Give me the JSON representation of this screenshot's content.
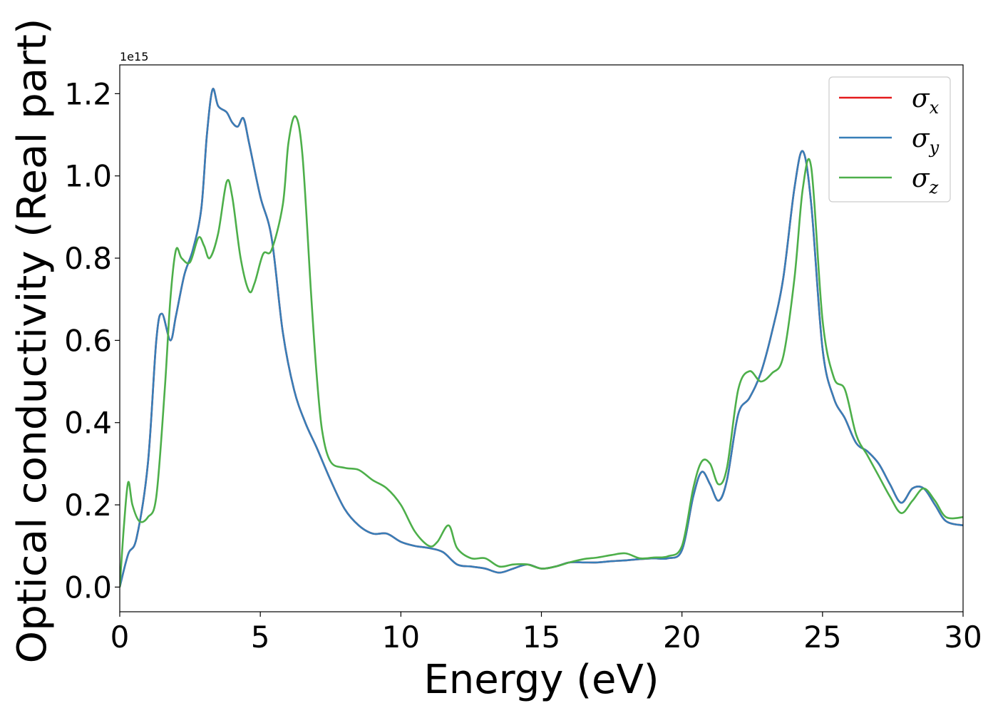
{
  "chart_data": {
    "type": "line",
    "xlabel": "Energy (eV)",
    "ylabel": "Optical conductivity (Real part)",
    "y_offset_label": "1e15",
    "xlim": [
      0,
      30
    ],
    "ylim": [
      -0.06,
      1.27
    ],
    "x_ticks": [
      0,
      5,
      10,
      15,
      20,
      25,
      30
    ],
    "x_tick_labels": [
      "0",
      "5",
      "10",
      "15",
      "20",
      "25",
      "30"
    ],
    "y_ticks": [
      0.0,
      0.2,
      0.4,
      0.6,
      0.8,
      1.0,
      1.2
    ],
    "y_tick_labels": [
      "0.0",
      "0.2",
      "0.4",
      "0.6",
      "0.8",
      "1.0",
      "1.2"
    ],
    "grid": false,
    "legend_position": "top-right",
    "series": [
      {
        "name": "σx",
        "symbol": "σ",
        "subscript": "x",
        "color": "#e41a1c",
        "x": [
          0,
          0.3,
          0.6,
          1.0,
          1.3,
          1.5,
          1.8,
          2.0,
          2.3,
          2.6,
          2.9,
          3.1,
          3.3,
          3.5,
          3.8,
          4.0,
          4.2,
          4.4,
          4.6,
          5.0,
          5.4,
          5.8,
          6.2,
          6.6,
          7.0,
          7.5,
          8.0,
          8.5,
          9.0,
          9.5,
          10.0,
          10.5,
          11.0,
          11.5,
          12.0,
          12.5,
          13.0,
          13.5,
          14.0,
          14.5,
          15.0,
          15.5,
          16.0,
          16.5,
          17.0,
          17.5,
          18.0,
          18.5,
          19.0,
          19.5,
          20.0,
          20.4,
          20.7,
          21.0,
          21.3,
          21.6,
          22.0,
          22.4,
          22.8,
          23.2,
          23.6,
          24.0,
          24.3,
          24.6,
          25.0,
          25.4,
          25.8,
          26.2,
          26.6,
          27.0,
          27.4,
          27.8,
          28.2,
          28.6,
          29.0,
          29.4,
          30.0
        ],
        "y": [
          0.0,
          0.08,
          0.12,
          0.3,
          0.6,
          0.665,
          0.6,
          0.66,
          0.76,
          0.82,
          0.92,
          1.1,
          1.21,
          1.17,
          1.155,
          1.13,
          1.12,
          1.14,
          1.08,
          0.95,
          0.85,
          0.62,
          0.48,
          0.4,
          0.34,
          0.26,
          0.19,
          0.15,
          0.13,
          0.13,
          0.11,
          0.1,
          0.095,
          0.085,
          0.055,
          0.05,
          0.045,
          0.035,
          0.045,
          0.055,
          0.045,
          0.05,
          0.06,
          0.06,
          0.06,
          0.063,
          0.065,
          0.068,
          0.07,
          0.07,
          0.09,
          0.22,
          0.28,
          0.25,
          0.21,
          0.26,
          0.42,
          0.46,
          0.52,
          0.62,
          0.75,
          0.97,
          1.06,
          0.93,
          0.58,
          0.46,
          0.41,
          0.35,
          0.33,
          0.3,
          0.25,
          0.205,
          0.24,
          0.24,
          0.2,
          0.16,
          0.15
        ]
      },
      {
        "name": "σy",
        "symbol": "σ",
        "subscript": "y",
        "color": "#377eb8",
        "x": [
          0,
          0.3,
          0.6,
          1.0,
          1.3,
          1.5,
          1.8,
          2.0,
          2.3,
          2.6,
          2.9,
          3.1,
          3.3,
          3.5,
          3.8,
          4.0,
          4.2,
          4.4,
          4.6,
          5.0,
          5.4,
          5.8,
          6.2,
          6.6,
          7.0,
          7.5,
          8.0,
          8.5,
          9.0,
          9.5,
          10.0,
          10.5,
          11.0,
          11.5,
          12.0,
          12.5,
          13.0,
          13.5,
          14.0,
          14.5,
          15.0,
          15.5,
          16.0,
          16.5,
          17.0,
          17.5,
          18.0,
          18.5,
          19.0,
          19.5,
          20.0,
          20.4,
          20.7,
          21.0,
          21.3,
          21.6,
          22.0,
          22.4,
          22.8,
          23.2,
          23.6,
          24.0,
          24.3,
          24.6,
          25.0,
          25.4,
          25.8,
          26.2,
          26.6,
          27.0,
          27.4,
          27.8,
          28.2,
          28.6,
          29.0,
          29.4,
          30.0
        ],
        "y": [
          0.0,
          0.08,
          0.12,
          0.3,
          0.6,
          0.665,
          0.6,
          0.66,
          0.76,
          0.82,
          0.92,
          1.1,
          1.21,
          1.17,
          1.155,
          1.13,
          1.12,
          1.14,
          1.08,
          0.95,
          0.85,
          0.62,
          0.48,
          0.4,
          0.34,
          0.26,
          0.19,
          0.15,
          0.13,
          0.13,
          0.11,
          0.1,
          0.095,
          0.085,
          0.055,
          0.05,
          0.045,
          0.035,
          0.045,
          0.055,
          0.045,
          0.05,
          0.06,
          0.06,
          0.06,
          0.063,
          0.065,
          0.068,
          0.07,
          0.07,
          0.09,
          0.22,
          0.28,
          0.25,
          0.21,
          0.26,
          0.42,
          0.46,
          0.52,
          0.62,
          0.75,
          0.97,
          1.06,
          0.93,
          0.58,
          0.46,
          0.41,
          0.35,
          0.33,
          0.3,
          0.25,
          0.205,
          0.24,
          0.24,
          0.2,
          0.16,
          0.15
        ]
      },
      {
        "name": "σz",
        "symbol": "σ",
        "subscript": "z",
        "color": "#4daf4a",
        "x": [
          0,
          0.15,
          0.3,
          0.45,
          0.7,
          1.0,
          1.3,
          1.6,
          1.8,
          2.0,
          2.2,
          2.5,
          2.8,
          3.0,
          3.2,
          3.5,
          3.8,
          4.0,
          4.3,
          4.6,
          4.8,
          5.1,
          5.4,
          5.8,
          6.0,
          6.25,
          6.5,
          6.8,
          7.0,
          7.2,
          7.5,
          8.0,
          8.5,
          9.0,
          9.5,
          10.0,
          10.5,
          11.0,
          11.3,
          11.7,
          12.0,
          12.5,
          13.0,
          13.5,
          14.0,
          14.5,
          15.0,
          15.5,
          16.0,
          16.5,
          17.0,
          17.5,
          18.0,
          18.5,
          19.0,
          19.5,
          20.0,
          20.4,
          20.7,
          21.0,
          21.3,
          21.6,
          22.0,
          22.4,
          22.8,
          23.2,
          23.6,
          24.0,
          24.3,
          24.6,
          25.0,
          25.4,
          25.8,
          26.2,
          26.6,
          27.0,
          27.4,
          27.8,
          28.2,
          28.6,
          29.0,
          29.4,
          30.0
        ],
        "y": [
          0.0,
          0.15,
          0.255,
          0.2,
          0.16,
          0.17,
          0.22,
          0.48,
          0.7,
          0.82,
          0.8,
          0.79,
          0.85,
          0.83,
          0.8,
          0.86,
          0.985,
          0.95,
          0.8,
          0.72,
          0.74,
          0.81,
          0.82,
          0.93,
          1.08,
          1.145,
          1.05,
          0.72,
          0.52,
          0.38,
          0.305,
          0.29,
          0.285,
          0.26,
          0.24,
          0.2,
          0.135,
          0.1,
          0.11,
          0.15,
          0.095,
          0.07,
          0.07,
          0.05,
          0.055,
          0.055,
          0.045,
          0.05,
          0.06,
          0.068,
          0.072,
          0.078,
          0.082,
          0.07,
          0.072,
          0.075,
          0.1,
          0.24,
          0.305,
          0.3,
          0.25,
          0.29,
          0.48,
          0.525,
          0.5,
          0.52,
          0.56,
          0.75,
          0.97,
          1.02,
          0.65,
          0.51,
          0.48,
          0.37,
          0.32,
          0.27,
          0.22,
          0.18,
          0.21,
          0.24,
          0.21,
          0.17,
          0.17
        ]
      }
    ]
  }
}
